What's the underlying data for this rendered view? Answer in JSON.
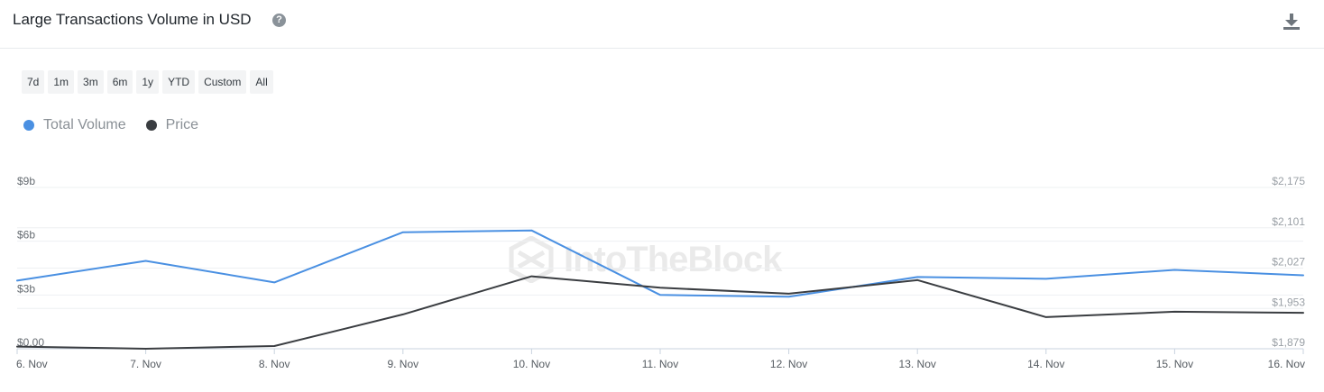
{
  "header": {
    "title": "Large Transactions Volume in USD",
    "help_icon": "question-circle-icon",
    "download_icon": "download-icon"
  },
  "range_buttons": [
    "7d",
    "1m",
    "3m",
    "6m",
    "1y",
    "YTD",
    "Custom",
    "All"
  ],
  "watermark": "IntoTheBlock",
  "colors": {
    "total_volume": "#4a90e2",
    "price": "#3a3d41",
    "grid": "#eef0f2",
    "axis": "#c9d3df"
  },
  "chart_data": {
    "type": "line",
    "categories": [
      "6. Nov",
      "7. Nov",
      "8. Nov",
      "9. Nov",
      "10. Nov",
      "11. Nov",
      "12. Nov",
      "13. Nov",
      "14. Nov",
      "15. Nov",
      "16. Nov"
    ],
    "series": [
      {
        "name": "Total Volume",
        "axis": "left",
        "values": [
          3.8,
          4.9,
          3.7,
          6.5,
          6.6,
          3.0,
          2.9,
          4.0,
          3.9,
          4.4,
          4.1
        ]
      },
      {
        "name": "Price",
        "axis": "right",
        "values": [
          1883,
          1879,
          1884,
          1942,
          2012,
          1991,
          1980,
          2005,
          1937,
          1947,
          1945
        ]
      }
    ],
    "y_left": {
      "ticks": [
        "$0.00",
        "$3b",
        "$6b",
        "$9b"
      ],
      "tick_values": [
        0,
        3,
        6,
        9
      ],
      "ylim": [
        0,
        9
      ]
    },
    "y_right": {
      "ticks": [
        "$1,879",
        "$1,953",
        "$2,027",
        "$2,101",
        "$2,175"
      ],
      "tick_values": [
        1879,
        1953,
        2027,
        2101,
        2175
      ],
      "ylim": [
        1879,
        2175
      ]
    },
    "legend_position": "top-left",
    "grid": true
  }
}
